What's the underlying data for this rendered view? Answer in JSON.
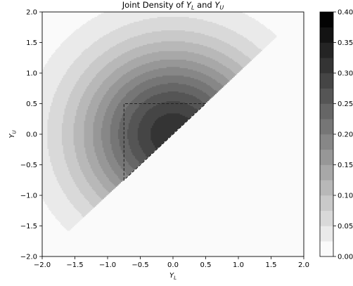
{
  "chart_data": {
    "type": "contour",
    "title": {
      "prefix": "Joint Density of ",
      "v1": "Y",
      "s1": "L",
      "mid": " and ",
      "v2": "Y",
      "s2": "U"
    },
    "xlabel": {
      "v": "Y",
      "s": "L"
    },
    "ylabel": {
      "v": "Y",
      "s": "U"
    },
    "xlim": [
      -2.0,
      2.0
    ],
    "ylim": [
      -2.0,
      2.0
    ],
    "xticks": [
      -2.0,
      -1.5,
      -1.0,
      -0.5,
      0.0,
      0.5,
      1.0,
      1.5,
      2.0
    ],
    "yticks": [
      -2.0,
      -1.5,
      -1.0,
      -0.5,
      0.0,
      0.5,
      1.0,
      1.5,
      2.0
    ],
    "xtick_labels": [
      "−2.0",
      "−1.5",
      "−1.0",
      "−0.5",
      "0.0",
      "0.5",
      "1.0",
      "1.5",
      "2.0"
    ],
    "ytick_labels": [
      "−2.0",
      "−1.5",
      "−1.0",
      "−0.5",
      "0.0",
      "0.5",
      "1.0",
      "1.5",
      "2.0"
    ],
    "density": "2 * phi(Y_L) * phi(Y_U) for Y_U > Y_L, else 0",
    "support": "Y_U > Y_L",
    "colormap": "Greys",
    "levels": [
      0.0,
      0.025,
      0.05,
      0.075,
      0.1,
      0.125,
      0.15,
      0.175,
      0.2,
      0.225,
      0.25,
      0.275,
      0.3,
      0.325,
      0.35,
      0.375,
      0.4
    ],
    "colorbar_ticks": [
      0.0,
      0.05,
      0.1,
      0.15,
      0.2,
      0.25,
      0.3,
      0.35,
      0.4
    ],
    "colorbar_tick_labels": [
      "0.00",
      "0.05",
      "0.10",
      "0.15",
      "0.20",
      "0.25",
      "0.30",
      "0.35",
      "0.40"
    ],
    "dashed_region": {
      "x": [
        -0.75,
        -0.75,
        0.5
      ],
      "y": [
        -0.75,
        0.5,
        0.5
      ],
      "closed": true
    },
    "grid": false
  }
}
